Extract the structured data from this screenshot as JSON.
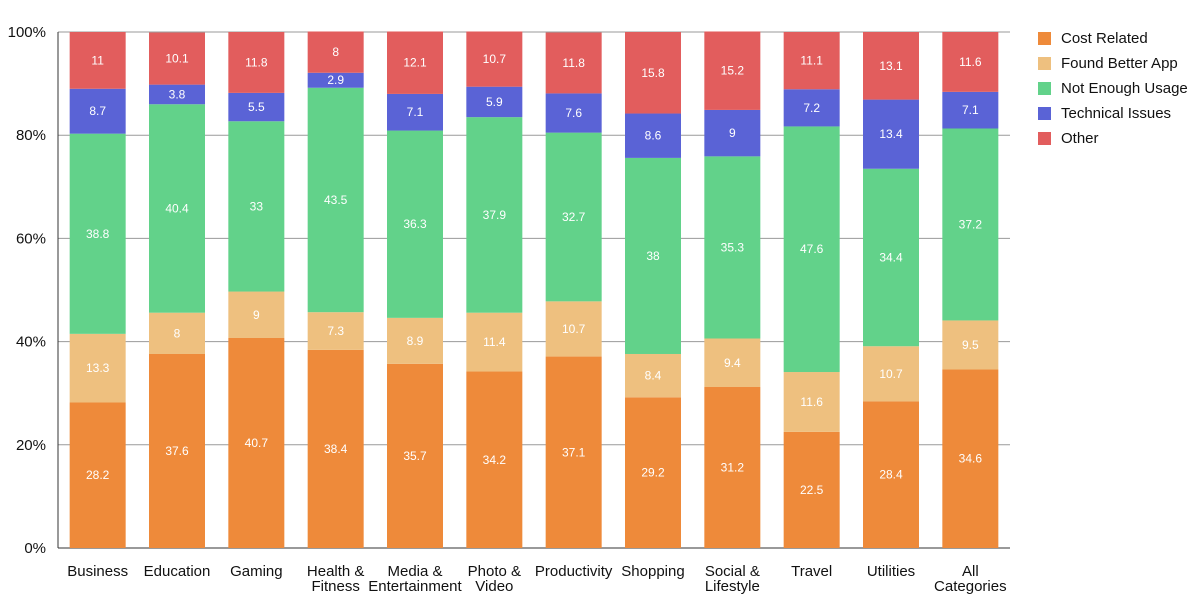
{
  "chart_data": {
    "type": "bar",
    "stacked": true,
    "title": "",
    "xlabel": "",
    "ylabel": "",
    "ylim": [
      0,
      100
    ],
    "y_ticks": [
      "0%",
      "20%",
      "40%",
      "60%",
      "80%",
      "100%"
    ],
    "y_tick_values": [
      0,
      20,
      40,
      60,
      80,
      100
    ],
    "grid": true,
    "legend_position": "top-right",
    "categories": [
      [
        "Business"
      ],
      [
        "Education"
      ],
      [
        "Gaming"
      ],
      [
        "Health &",
        "Fitness"
      ],
      [
        "Media &",
        "Entertainment"
      ],
      [
        "Photo &",
        "Video"
      ],
      [
        "Productivity"
      ],
      [
        "Shopping"
      ],
      [
        "Social &",
        "Lifestyle"
      ],
      [
        "Travel"
      ],
      [
        "Utilities"
      ],
      [
        "All",
        "Categories"
      ]
    ],
    "series": [
      {
        "name": "Cost Related",
        "color": "#EE8A3A",
        "label_color": "#ffffff",
        "values": [
          28.2,
          37.6,
          40.7,
          38.4,
          35.7,
          34.2,
          37.1,
          29.2,
          31.2,
          22.5,
          28.4,
          34.6
        ],
        "labels": [
          "28.2",
          "37.6",
          "40.7",
          "38.4",
          "35.7",
          "34.2",
          "37.1",
          "29.2",
          "31.2",
          "22.5",
          "28.4",
          "34.6"
        ]
      },
      {
        "name": "Found Better App",
        "color": "#EEC07F",
        "label_color": "#ffffff",
        "values": [
          13.3,
          8,
          9,
          7.3,
          8.9,
          11.4,
          10.7,
          8.4,
          9.4,
          11.6,
          10.7,
          9.5
        ],
        "labels": [
          "13.3",
          "8",
          "9",
          "7.3",
          "8.9",
          "11.4",
          "10.7",
          "8.4",
          "9.4",
          "11.6",
          "10.7",
          "9.5"
        ]
      },
      {
        "name": "Not Enough Usage",
        "color": "#62D28A",
        "label_color": "#ffffff",
        "values": [
          38.8,
          40.4,
          33,
          43.5,
          36.3,
          37.9,
          32.7,
          38,
          35.3,
          47.6,
          34.4,
          37.2
        ],
        "labels": [
          "38.8",
          "40.4",
          "33",
          "43.5",
          "36.3",
          "37.9",
          "32.7",
          "38",
          "35.3",
          "47.6",
          "34.4",
          "37.2"
        ]
      },
      {
        "name": "Technical Issues",
        "color": "#5A63D6",
        "label_color": "#ffffff",
        "values": [
          8.7,
          3.8,
          5.5,
          2.9,
          7.1,
          5.9,
          7.6,
          8.6,
          9,
          7.2,
          13.4,
          7.1
        ],
        "labels": [
          "8.7",
          "3.8",
          "5.5",
          "2.9",
          "7.1",
          "5.9",
          "7.6",
          "8.6",
          "9",
          "7.2",
          "13.4",
          "7.1"
        ]
      },
      {
        "name": "Other",
        "color": "#E25D5D",
        "label_color": "#ffffff",
        "values": [
          11,
          10.1,
          11.8,
          8,
          12.1,
          10.7,
          11.8,
          15.8,
          15.2,
          11.1,
          13.1,
          11.6
        ],
        "labels": [
          "11",
          "10.1",
          "11.8",
          "8",
          "12.1",
          "10.7",
          "11.8",
          "15.8",
          "15.2",
          "11.1",
          "13.1",
          "11.6"
        ]
      }
    ]
  }
}
